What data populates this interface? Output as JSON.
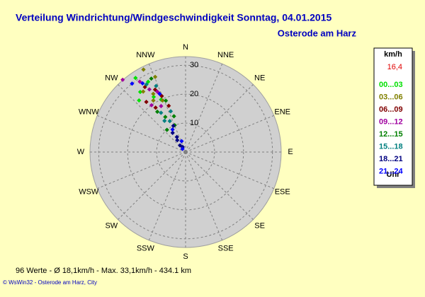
{
  "chart_data": {
    "type": "polar-scatter",
    "title": "Verteilung Windrichtung/Windgeschwindigkeit  Sonntag, 04.01.2015",
    "subtitle": "Osterode am Harz",
    "directions": [
      "N",
      "NNE",
      "NE",
      "ENE",
      "E",
      "ESE",
      "SE",
      "SSE",
      "S",
      "SSW",
      "SW",
      "WSW",
      "W",
      "WNW",
      "NW",
      "NNW"
    ],
    "rlim": [
      0,
      33
    ],
    "rticks": [
      10,
      20,
      30
    ],
    "legend_title": "km/h",
    "legend_current": "16,4",
    "legend_footer": "Uhr",
    "series": [
      {
        "name": "00...03",
        "color": "#00e000",
        "direction": [
          326,
          332,
          323,
          330,
          318,
          335
        ],
        "values": [
          30.9,
          27.5,
          26,
          22,
          24,
          20
        ]
      },
      {
        "name": "03...06",
        "color": "#808000",
        "direction": [
          333,
          338,
          325,
          331,
          336,
          328
        ],
        "values": [
          32,
          28,
          25.5,
          23,
          19.5,
          21
        ]
      },
      {
        "name": "06...09",
        "color": "#800000",
        "direction": [
          328,
          334,
          322,
          337,
          326,
          340
        ],
        "values": [
          26.5,
          24,
          22,
          21,
          18.5,
          17
        ]
      },
      {
        "name": "09...12",
        "color": "#a000a0",
        "direction": [
          319,
          327,
          330,
          335,
          324,
          332
        ],
        "values": [
          33.1,
          29,
          25,
          23,
          20,
          18
        ]
      },
      {
        "name": "12...15",
        "color": "#008000",
        "direction": [
          335,
          339,
          325,
          330,
          338,
          320,
          342
        ],
        "values": [
          28,
          19,
          17,
          14,
          10,
          10,
          13
        ]
      },
      {
        "name": "15...18",
        "color": "#008080",
        "direction": [
          330,
          336,
          328,
          333,
          340,
          326
        ],
        "values": [
          27,
          25,
          16,
          12,
          15,
          13
        ]
      },
      {
        "name": "18...21",
        "color": "#000080",
        "direction": [
          326,
          330,
          325,
          320,
          330,
          335
        ],
        "values": [
          8,
          6,
          5,
          3,
          2,
          10
        ]
      },
      {
        "name": "21...24",
        "color": "#0000ff",
        "direction": [
          328,
          322,
          336,
          330,
          315,
          340
        ],
        "values": [
          28,
          30,
          22,
          9,
          1.5,
          4
        ]
      }
    ],
    "footer": "96 Werte  -  Ø 18,1km/h  -  Max. 33,1km/h  -  434.1 km",
    "copyright": "© WsWin32  -  Osterode am Harz, City"
  }
}
